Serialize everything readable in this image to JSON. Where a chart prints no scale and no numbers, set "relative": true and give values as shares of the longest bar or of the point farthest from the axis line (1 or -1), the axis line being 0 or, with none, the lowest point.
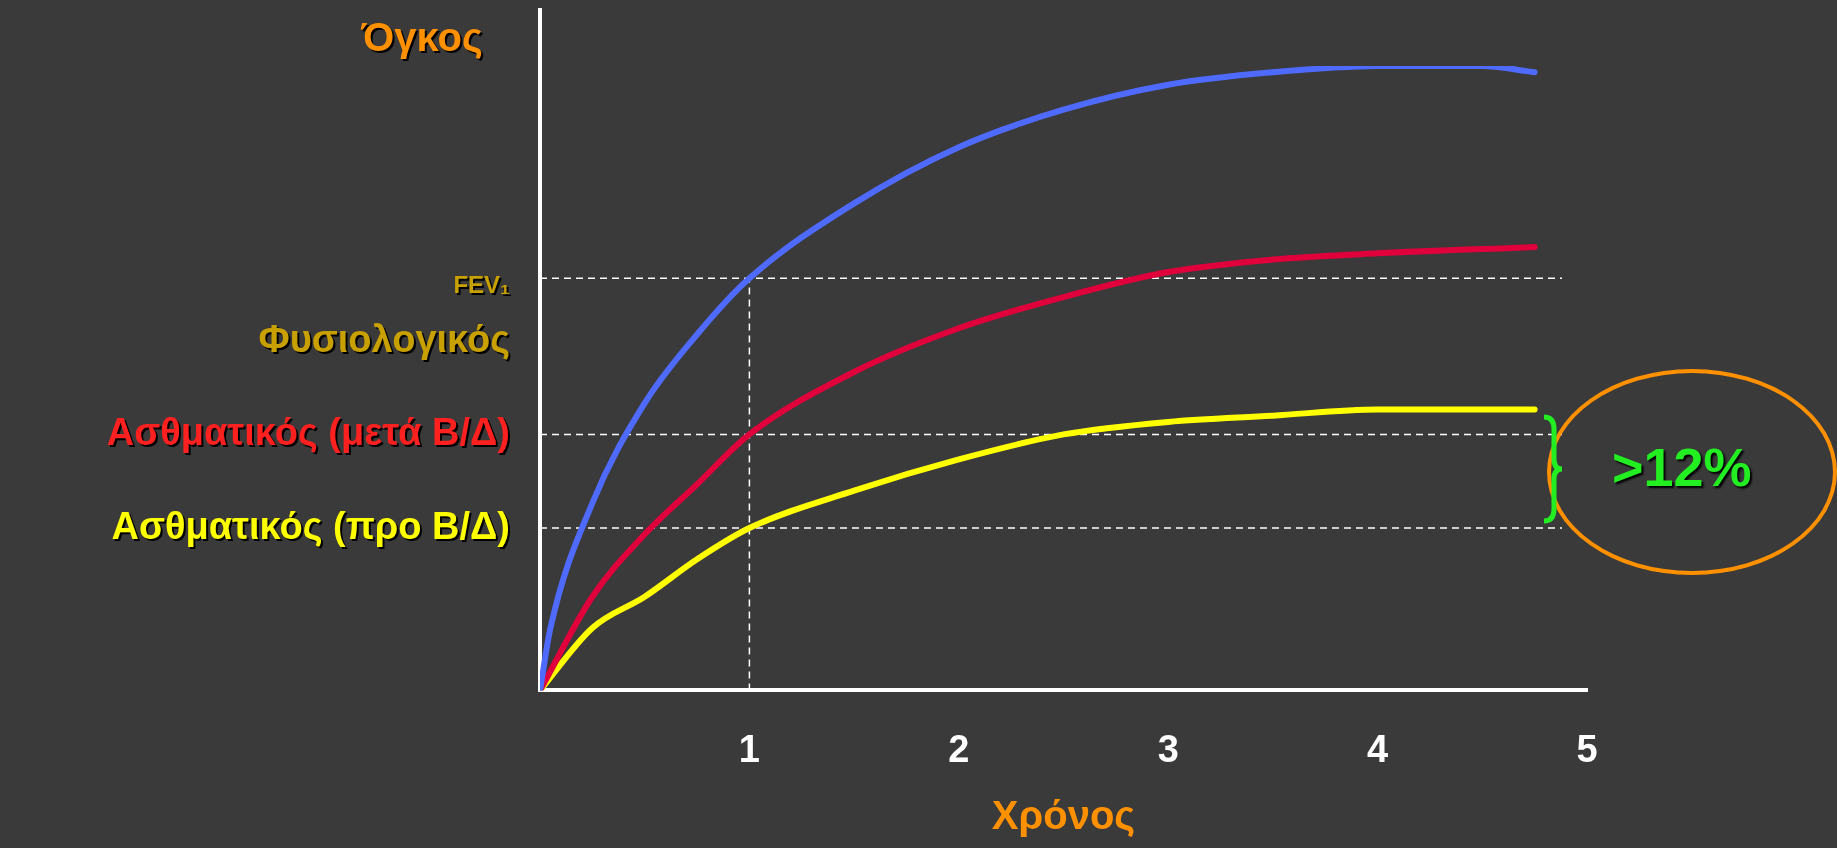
{
  "chart_data": {
    "type": "line",
    "relative": true,
    "xlabel": "Χρόνος",
    "ylabel": "Όγκος",
    "xlim": [
      0,
      5
    ],
    "xticks": [
      1,
      2,
      3,
      4,
      5
    ],
    "tick_labels": "x",
    "grid": false,
    "legend": false,
    "marker": "none",
    "line_style": "solid",
    "series": [
      {
        "color": "#4f6bff",
        "x": [
          0,
          0.05,
          0.25,
          0.5,
          0.75,
          1,
          1.5,
          2,
          2.5,
          3,
          3.5,
          4,
          4.5,
          4.75
        ],
        "values": [
          0,
          0.1,
          0.3,
          0.46,
          0.57,
          0.66,
          0.78,
          0.87,
          0.93,
          0.97,
          0.99,
          1,
          1,
          0.99
        ]
      },
      {
        "color": "#e0003c",
        "x": [
          0,
          0.25,
          0.5,
          0.75,
          1,
          1.5,
          2,
          2.5,
          3,
          3.5,
          4,
          4.75
        ],
        "values": [
          0,
          0.15,
          0.25,
          0.33,
          0.41,
          0.51,
          0.58,
          0.63,
          0.67,
          0.69,
          0.7,
          0.71
        ]
      },
      {
        "color": "#ffff00",
        "x": [
          0,
          0.25,
          0.5,
          0.75,
          1,
          1.5,
          2,
          2.5,
          3,
          3.5,
          4,
          4.75
        ],
        "values": [
          0,
          0.1,
          0.15,
          0.21,
          0.26,
          0.32,
          0.37,
          0.41,
          0.43,
          0.44,
          0.45,
          0.45
        ]
      }
    ],
    "ref_lines": [
      {
        "axis": "y",
        "value": 0.66,
        "label": "FEV₁\nΦυσιολογικός"
      },
      {
        "axis": "y",
        "value": 0.41,
        "label": "Ασθματικός (μετά Β/Δ)"
      },
      {
        "axis": "y",
        "value": 0.26,
        "label": "Ασθματικός (προ Β/Δ)"
      },
      {
        "axis": "x",
        "value": 1
      }
    ],
    "annotations": [
      ">12%"
    ]
  }
}
